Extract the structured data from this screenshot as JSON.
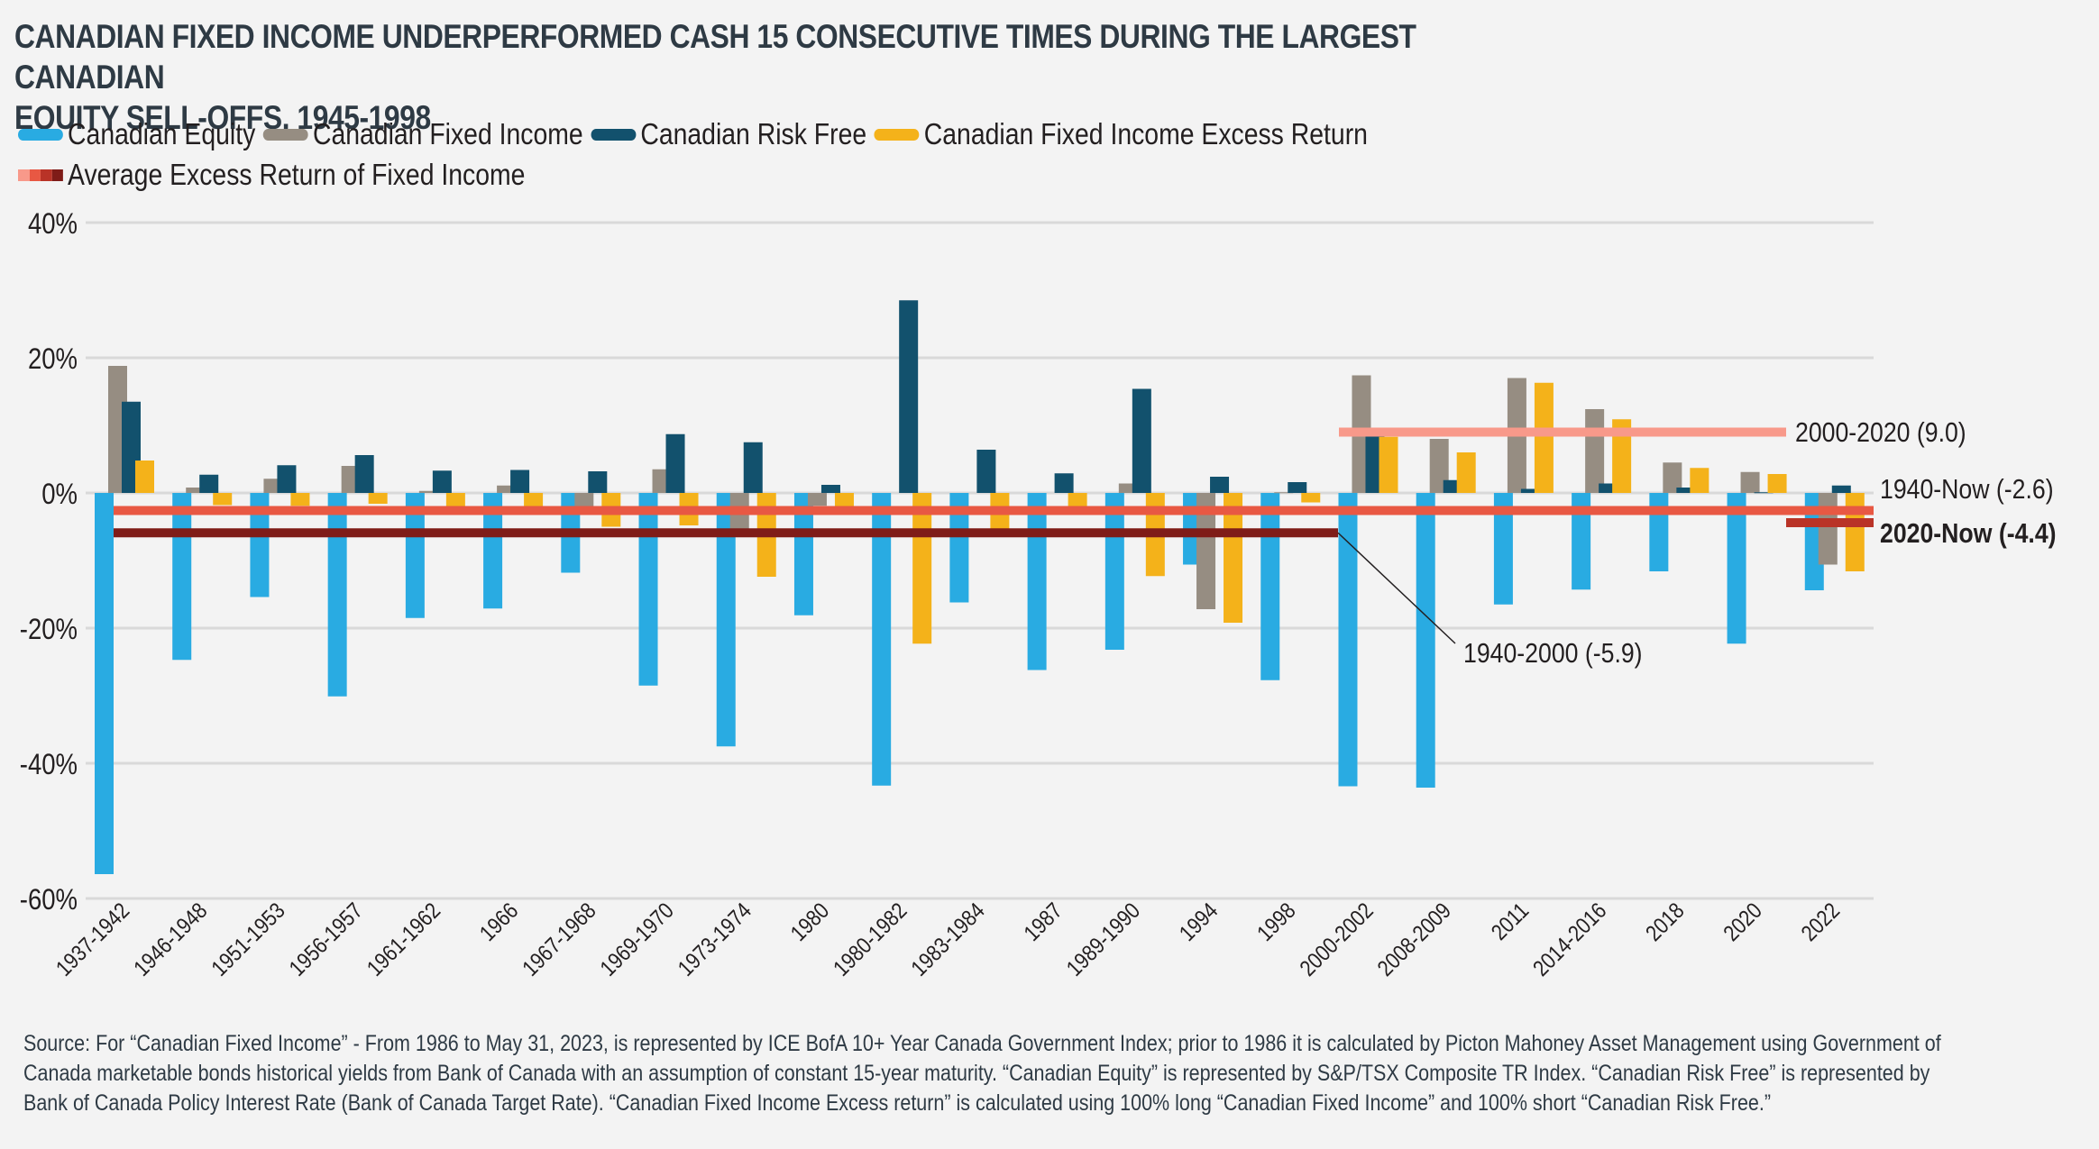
{
  "title_lines": [
    "CANADIAN FIXED INCOME UNDERPERFORMED CASH 15 CONSECUTIVE TIMES DURING THE LARGEST CANADIAN",
    "EQUITY SELL-OFFS, 1945-1998"
  ],
  "legend": {
    "items": [
      {
        "label": "Canadian Equity",
        "color": "#29abe2"
      },
      {
        "label": "Canadian Fixed Income",
        "color": "#968d82"
      },
      {
        "label": "Canadian Risk Free",
        "color": "#12516d"
      },
      {
        "label": "Canadian Fixed Income Excess Return",
        "color": "#f4b21a"
      }
    ],
    "average_label": "Average Excess Return of Fixed Income",
    "average_colors": [
      "#f8998a",
      "#e85843",
      "#b93327",
      "#7f1c18"
    ]
  },
  "chart_data": {
    "type": "bar",
    "title": "CANADIAN FIXED INCOME UNDERPERFORMED CASH 15 CONSECUTIVE TIMES DURING THE LARGEST CANADIAN EQUITY SELL-OFFS, 1945-1998",
    "xlabel": "",
    "ylabel": "",
    "ylim": [
      -60,
      40
    ],
    "yticks": [
      40,
      20,
      0,
      -20,
      -40,
      -60
    ],
    "ytick_labels": [
      "40%",
      "20%",
      "0%",
      "-20%",
      "-40%",
      "-60%"
    ],
    "grid": true,
    "legend_position": "top-left",
    "categories": [
      "1937-1942",
      "1946-1948",
      "1951-1953",
      "1956-1957",
      "1961-1962",
      "1966",
      "1967-1968",
      "1969-1970",
      "1973-1974",
      "1980",
      "1980-1982",
      "1983-1984",
      "1987",
      "1989-1990",
      "1994",
      "1998",
      "2000-2002",
      "2008-2009",
      "2011",
      "2014-2016",
      "2018",
      "2020",
      "2022"
    ],
    "series": [
      {
        "name": "Canadian Equity",
        "color": "#29abe2",
        "values": [
          -56.4,
          -24.7,
          -15.4,
          -30.1,
          -18.5,
          -17.1,
          -11.8,
          -28.5,
          -37.5,
          -18.1,
          -43.3,
          -16.2,
          -26.2,
          -23.2,
          -10.6,
          -27.7,
          -43.4,
          -43.6,
          -16.5,
          -14.3,
          -11.6,
          -22.3,
          -14.4
        ]
      },
      {
        "name": "Canadian Fixed Income",
        "color": "#968d82",
        "values": [
          18.8,
          0.8,
          2.1,
          4.0,
          0.3,
          1.1,
          -2.0,
          3.5,
          -5.7,
          -1.9,
          0.0,
          0.0,
          0.0,
          1.4,
          -17.2,
          0.1,
          17.4,
          8.0,
          17.0,
          12.4,
          4.5,
          3.1,
          -10.6
        ]
      },
      {
        "name": "Canadian Risk Free",
        "color": "#12516d",
        "values": [
          13.5,
          2.7,
          4.1,
          5.6,
          3.3,
          3.4,
          3.2,
          8.7,
          7.5,
          1.2,
          28.5,
          6.4,
          2.9,
          15.4,
          2.4,
          1.6,
          8.5,
          1.9,
          0.6,
          1.4,
          0.8,
          0.1,
          1.1
        ]
      },
      {
        "name": "Canadian Fixed Income Excess Return",
        "color": "#f4b21a",
        "values": [
          4.8,
          -1.8,
          -1.9,
          -1.6,
          -3.0,
          -2.2,
          -5.0,
          -4.8,
          -12.4,
          -3.1,
          -22.3,
          -6.2,
          -3.0,
          -12.3,
          -19.2,
          -1.4,
          8.3,
          6.0,
          16.3,
          10.9,
          3.7,
          2.8,
          -11.6
        ]
      }
    ],
    "reference_lines": [
      {
        "label": "1940-Now (-2.6)",
        "value": -2.6,
        "from_category": "1937-1942",
        "to_category": "2022",
        "color": "#e85843",
        "bold": false
      },
      {
        "label": "1940-2000 (-5.9)",
        "value": -5.9,
        "from_category": "1937-1942",
        "to_category": "1998",
        "color": "#7f1c18",
        "bold": false
      },
      {
        "label": "2000-2020 (9.0)",
        "value": 9.0,
        "from_category": "2000-2002",
        "to_category": "2020",
        "color": "#f8998a",
        "bold": false
      },
      {
        "label": "2020-Now (-4.4)",
        "value": -4.4,
        "from_category": "2022",
        "to_category": "2022",
        "color": "#b93327",
        "bold": true
      }
    ]
  },
  "footnote_lines": [
    "Source: For “Canadian Fixed Income” - From 1986 to May 31, 2023, is represented by ICE BofA 10+ Year Canada Government Index; prior to 1986 it is calculated by Picton Mahoney Asset Management using Government of",
    "Canada marketable bonds historical yields from Bank of Canada with an assumption of constant 15-year maturity. “Canadian Equity” is represented by S&P/TSX Composite TR Index. “Canadian Risk Free” is represented by",
    "Bank of Canada Policy Interest Rate (Bank of Canada Target Rate). “Canadian Fixed Income Excess return” is calculated using 100% long “Canadian Fixed Income” and 100% short “Canadian Risk Free.”"
  ]
}
